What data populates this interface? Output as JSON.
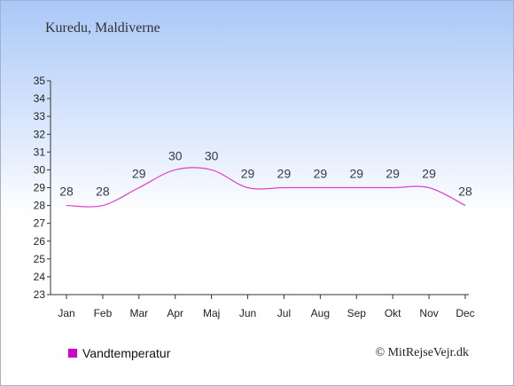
{
  "chart_data": {
    "type": "line",
    "title": "Kuredu, Maldiverne",
    "categories": [
      "Jan",
      "Feb",
      "Mar",
      "Apr",
      "Maj",
      "Jun",
      "Jul",
      "Aug",
      "Sep",
      "Okt",
      "Nov",
      "Dec"
    ],
    "series": [
      {
        "name": "Vandtemperatur",
        "values": [
          28,
          28,
          29,
          30,
          30,
          29,
          29,
          29,
          29,
          29,
          29,
          28
        ],
        "color": "#e040c8"
      }
    ],
    "ylim": [
      23,
      35
    ],
    "yticks": [
      23,
      24,
      25,
      26,
      27,
      28,
      29,
      30,
      31,
      32,
      33,
      34,
      35
    ],
    "grid": false,
    "legend": "bottom-left"
  },
  "legend": {
    "label": "Vandtemperatur",
    "color": "#d400c8"
  },
  "credit": "© MitRejseVejr.dk"
}
